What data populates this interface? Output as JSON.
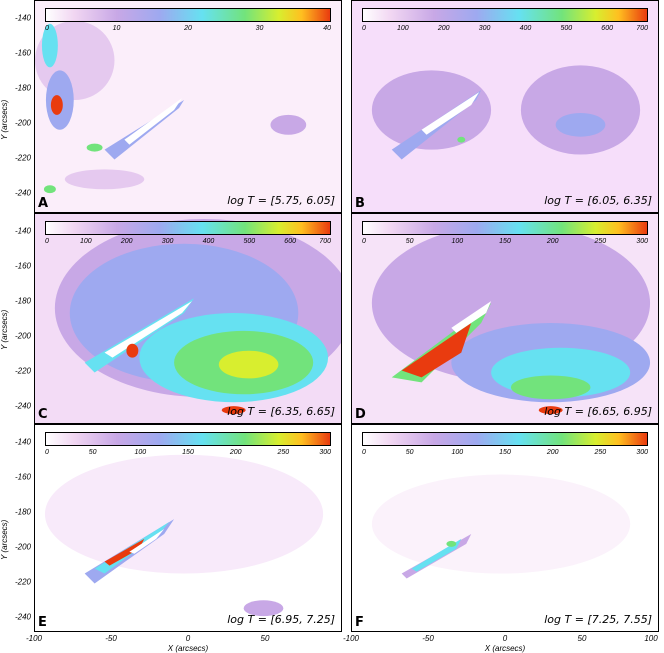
{
  "panels": [
    {
      "letter": "A",
      "temperature": "log T = [5.75, 6.05]",
      "colorbar": {
        "ticks": [
          "0",
          "10",
          "20",
          "30",
          "40"
        ]
      }
    },
    {
      "letter": "B",
      "temperature": "log T = [6.05, 6.35]",
      "colorbar": {
        "ticks": [
          "0",
          "100",
          "200",
          "300",
          "400",
          "500",
          "600",
          "700"
        ]
      }
    },
    {
      "letter": "C",
      "temperature": "log T = [6.35, 6.65]",
      "colorbar": {
        "ticks": [
          "0",
          "100",
          "200",
          "300",
          "400",
          "500",
          "600",
          "700"
        ]
      }
    },
    {
      "letter": "D",
      "temperature": "log T = [6.65, 6.95]",
      "colorbar": {
        "ticks": [
          "0",
          "50",
          "100",
          "150",
          "200",
          "250",
          "300"
        ]
      }
    },
    {
      "letter": "E",
      "temperature": "log T = [6.95, 7.25]",
      "colorbar": {
        "ticks": [
          "0",
          "50",
          "100",
          "150",
          "200",
          "250",
          "300"
        ]
      }
    },
    {
      "letter": "F",
      "temperature": "log T = [7.25, 7.55]",
      "colorbar": {
        "ticks": [
          "0",
          "50",
          "100",
          "150",
          "200",
          "250",
          "300"
        ]
      }
    }
  ],
  "axes": {
    "ylabel": "Y (arcsecs)",
    "xlabel": "X (arcsecs)",
    "yticks": [
      "-140",
      "-160",
      "-180",
      "-200",
      "-220",
      "-240"
    ],
    "xticks_left": [
      "-100",
      "-50",
      "0",
      "50"
    ],
    "xticks_right": [
      "-100",
      "-50",
      "0",
      "50",
      "100"
    ]
  },
  "colors": {
    "background": "#fde9fb",
    "cyan": "#66e1f1",
    "green": "#72e37c",
    "yellow": "#d8ee2f",
    "red": "#e93b0f"
  }
}
